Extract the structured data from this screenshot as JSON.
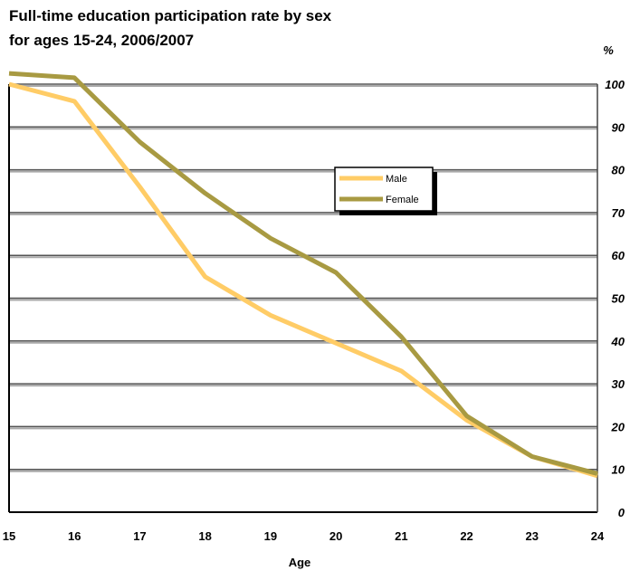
{
  "chart_data": {
    "type": "line",
    "title_lines": [
      "Full-time education participation rate by sex",
      "for ages 15-24, 2006/2007"
    ],
    "xlabel": "Age",
    "ylabel": "%",
    "categories": [
      "15",
      "16",
      "17",
      "18",
      "19",
      "20",
      "21",
      "22",
      "23",
      "24"
    ],
    "yticks": [
      "0",
      "10",
      "20",
      "30",
      "40",
      "50",
      "60",
      "70",
      "80",
      "90",
      "100"
    ],
    "ylim": [
      0,
      100
    ],
    "grid": true,
    "y_axis_position": "right",
    "legend_position": "upper-right",
    "series": [
      {
        "name": "Male",
        "color": "#FFCC66",
        "values": [
          100,
          96,
          76,
          55,
          46,
          39.5,
          33,
          21.5,
          13,
          8.5
        ]
      },
      {
        "name": "Female",
        "color": "#A89A42",
        "values": [
          102.5,
          101.5,
          86.5,
          74.5,
          64,
          56,
          41,
          22.5,
          13,
          9
        ]
      }
    ]
  }
}
